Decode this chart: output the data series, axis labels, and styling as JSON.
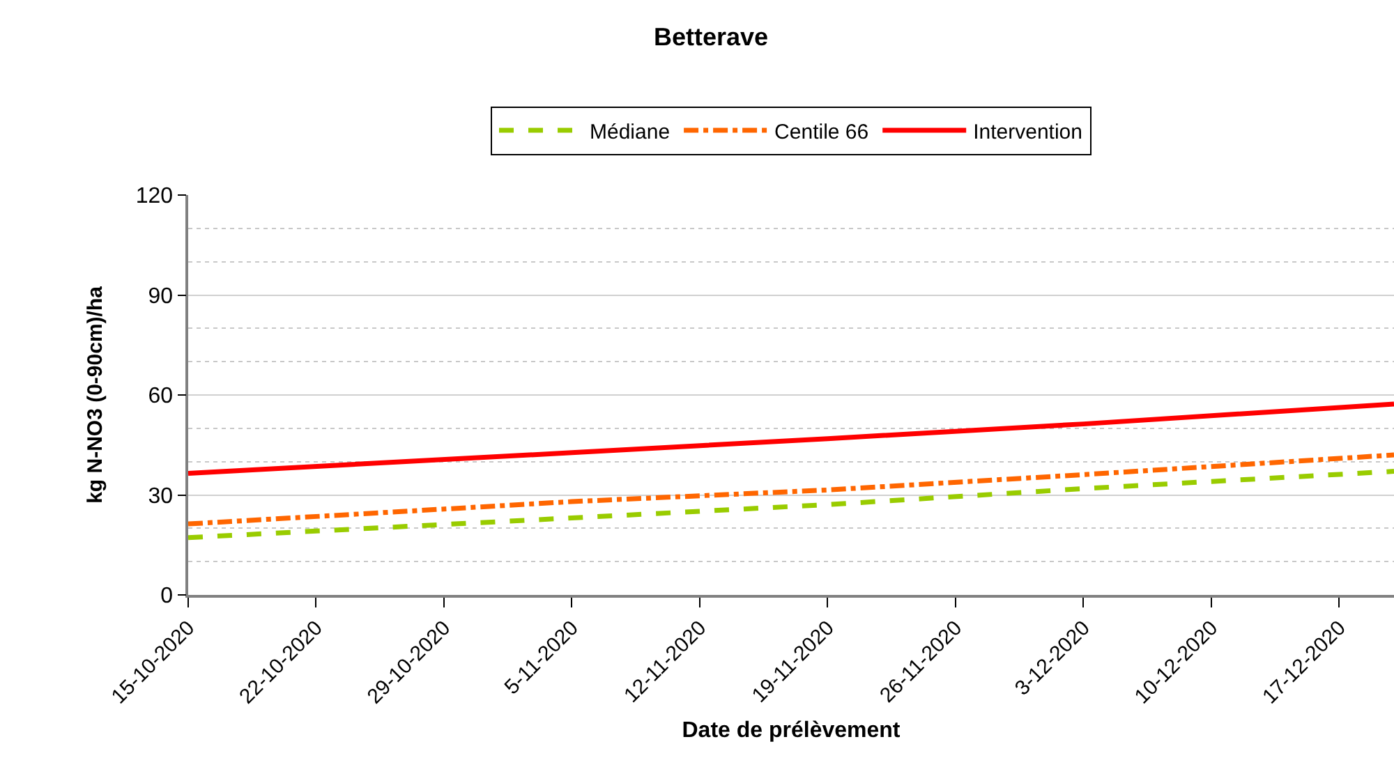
{
  "chart_data": {
    "type": "line",
    "title": "Betterave",
    "xlabel": "Date de prélèvement",
    "ylabel": "kg N-NO3 (0-90cm)/ha",
    "x": [
      "2020-10-15",
      "2020-11-05",
      "2020-11-19",
      "2020-12-03",
      "2020-12-20"
    ],
    "series": [
      {
        "name": "Médiane",
        "color": "#99cc00",
        "line_style": "dashed",
        "values": [
          17.2,
          23.1,
          27.1,
          31.9,
          37.1
        ]
      },
      {
        "name": "Centile 66",
        "color": "#ff6600",
        "line_style": "dashdot",
        "values": [
          21.3,
          28,
          31.5,
          36.1,
          42
        ]
      },
      {
        "name": "Intervention",
        "color": "#ff0000",
        "line_style": "solid",
        "values": [
          36.5,
          42.7,
          46.9,
          51.3,
          57.3
        ]
      }
    ],
    "xlim": [
      "2020-10-15",
      "2020-12-20"
    ],
    "xticks": [
      {
        "value": "2020-10-15",
        "label": "15-10-2020"
      },
      {
        "value": "2020-10-22",
        "label": "22-10-2020"
      },
      {
        "value": "2020-10-29",
        "label": "29-10-2020"
      },
      {
        "value": "2020-11-05",
        "label": "5-11-2020"
      },
      {
        "value": "2020-11-12",
        "label": "12-11-2020"
      },
      {
        "value": "2020-11-19",
        "label": "19-11-2020"
      },
      {
        "value": "2020-11-26",
        "label": "26-11-2020"
      },
      {
        "value": "2020-12-03",
        "label": "3-12-2020"
      },
      {
        "value": "2020-12-10",
        "label": "10-12-2020"
      },
      {
        "value": "2020-12-17",
        "label": "17-12-2020"
      }
    ],
    "ylim": [
      0,
      120
    ],
    "yticks": [
      0,
      {
        "value": 10,
        "label": null
      },
      {
        "value": 20,
        "label": null
      },
      30,
      {
        "value": 40,
        "label": null
      },
      {
        "value": 50,
        "label": null
      },
      60,
      {
        "value": 70,
        "label": null
      },
      {
        "value": 80,
        "label": null
      },
      90,
      {
        "value": 100,
        "label": null
      },
      {
        "value": 110,
        "label": null
      },
      120
    ],
    "grid": "y",
    "legend": "top",
    "marker": "none"
  }
}
